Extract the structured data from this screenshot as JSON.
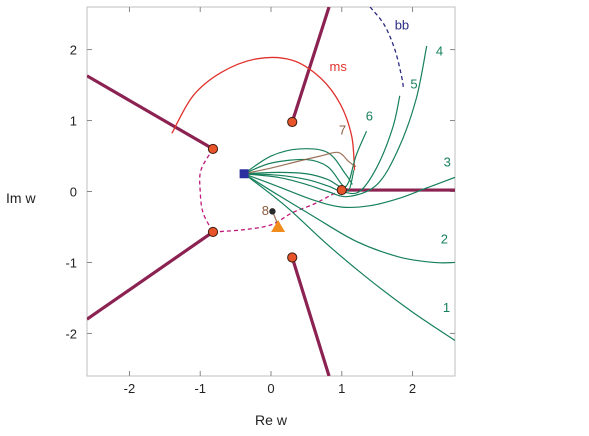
{
  "chart_data": {
    "type": "line",
    "title": "",
    "xlabel": "Re w",
    "ylabel": "Im w",
    "xlim": [
      -2.6,
      2.6
    ],
    "ylim": [
      -2.6,
      2.6
    ],
    "x_ticks": [
      -2,
      -1,
      0,
      1,
      2
    ],
    "y_ticks": [
      -2,
      -1,
      0,
      1,
      2
    ],
    "x_tick_labels": [
      "-2",
      "-1",
      "0",
      "1",
      "2"
    ],
    "y_tick_labels": [
      "-2",
      "-1",
      "0",
      "1",
      "2"
    ],
    "grid": false,
    "colors": {
      "cut": "#8b2252",
      "ms": "#e0322d",
      "bb": "#2a2a80",
      "flow": "#17805a",
      "flow_brown": "#8a5a3c",
      "dashed_pink": "#c0197a",
      "point_fill": "#e8542a",
      "square": "#2a2fa0",
      "triangle": "#f08c1c"
    },
    "points": {
      "circles": [
        [
          -0.82,
          0.6
        ],
        [
          0.3,
          0.98
        ],
        [
          1.0,
          0.02
        ],
        [
          0.3,
          -0.93
        ],
        [
          -0.82,
          -0.57
        ]
      ],
      "square": [
        -0.38,
        0.25
      ],
      "triangle": [
        0.1,
        -0.5
      ],
      "dot": [
        0.02,
        -0.28
      ]
    },
    "cuts": [
      {
        "name": "",
        "x": [
          -0.82,
          -2.6
        ],
        "y": [
          0.6,
          1.63
        ]
      },
      {
        "name": "",
        "x": [
          0.3,
          0.82
        ],
        "y": [
          0.98,
          2.6
        ]
      },
      {
        "name": "",
        "x": [
          1.0,
          2.6
        ],
        "y": [
          0.02,
          0.02
        ]
      },
      {
        "name": "",
        "x": [
          0.3,
          0.82
        ],
        "y": [
          -0.93,
          -2.6
        ]
      },
      {
        "name": "",
        "x": [
          -0.82,
          -2.6
        ],
        "y": [
          -0.57,
          -1.8
        ]
      }
    ],
    "series": [
      {
        "name": "ms",
        "style": "solid",
        "x": [
          -1.4,
          -1.1,
          -0.7,
          -0.2,
          0.3,
          0.7,
          0.98,
          1.14,
          1.18
        ],
        "y": [
          0.82,
          1.35,
          1.68,
          1.87,
          1.85,
          1.6,
          1.23,
          0.78,
          0.3
        ]
      },
      {
        "name": "bb",
        "style": "dashed",
        "x": [
          1.4,
          1.6,
          1.75,
          1.85,
          1.87
        ],
        "y": [
          2.6,
          2.35,
          2.0,
          1.6,
          1.45
        ]
      },
      {
        "name": "",
        "style": "dashed-pink",
        "x": [
          -0.82,
          -0.99,
          -1.0,
          -0.96,
          -0.82
        ],
        "y": [
          0.6,
          0.3,
          0.0,
          -0.3,
          -0.57
        ]
      },
      {
        "name": "",
        "style": "dashed-pink",
        "x": [
          -0.82,
          -0.4,
          0.0,
          0.3,
          0.6,
          0.85,
          1.0
        ],
        "y": [
          -0.57,
          -0.54,
          -0.47,
          -0.3,
          -0.18,
          -0.05,
          0.02
        ]
      },
      {
        "name": "1",
        "style": "flow",
        "x": [
          -0.38,
          0.2,
          0.8,
          1.4,
          2.0,
          2.6
        ],
        "y": [
          0.25,
          -0.2,
          -0.75,
          -1.25,
          -1.7,
          -2.1
        ]
      },
      {
        "name": "2",
        "style": "flow",
        "x": [
          -0.38,
          0.1,
          0.6,
          1.2,
          1.8,
          2.3,
          2.6
        ],
        "y": [
          0.25,
          -0.05,
          -0.35,
          -0.7,
          -0.92,
          -1.0,
          -1.0
        ]
      },
      {
        "name": "3",
        "style": "flow",
        "x": [
          -0.38,
          0.1,
          0.6,
          1.0,
          1.4,
          1.8,
          2.2,
          2.6
        ],
        "y": [
          0.25,
          0.07,
          -0.12,
          -0.22,
          -0.2,
          -0.1,
          0.05,
          0.2
        ]
      },
      {
        "name": "4",
        "style": "flow",
        "x": [
          -0.38,
          0.1,
          0.5,
          0.8,
          1.1,
          1.5,
          1.8,
          2.05,
          2.2
        ],
        "y": [
          0.25,
          0.2,
          0.1,
          0.0,
          -0.07,
          0.1,
          0.6,
          1.3,
          2.05
        ]
      },
      {
        "name": "5",
        "style": "flow",
        "x": [
          -0.38,
          0.1,
          0.5,
          0.8,
          1.0,
          1.25,
          1.5,
          1.72,
          1.82
        ],
        "y": [
          0.25,
          0.23,
          0.17,
          0.08,
          0.0,
          0.0,
          0.35,
          0.9,
          1.35
        ]
      },
      {
        "name": "6",
        "style": "flow",
        "x": [
          -0.38,
          0.1,
          0.5,
          0.8,
          1.0,
          1.1,
          1.2,
          1.35
        ],
        "y": [
          0.25,
          0.27,
          0.25,
          0.17,
          0.06,
          0.14,
          0.5,
          0.85
        ]
      },
      {
        "name": "",
        "style": "flow",
        "x": [
          -0.38,
          0.0,
          0.5,
          0.8,
          1.0,
          1.1,
          1.17
        ],
        "y": [
          0.25,
          0.4,
          0.45,
          0.35,
          0.1,
          0.02,
          0.3
        ]
      },
      {
        "name": "",
        "style": "flow",
        "x": [
          -0.38,
          0.0,
          0.4,
          0.8,
          1.05,
          1.15
        ],
        "y": [
          0.25,
          0.5,
          0.6,
          0.55,
          0.25,
          0.1
        ]
      },
      {
        "name": "7",
        "style": "flow-brown",
        "x": [
          -0.38,
          0.0,
          0.4,
          0.7,
          0.95,
          1.1,
          1.2
        ],
        "y": [
          0.25,
          0.33,
          0.43,
          0.5,
          0.55,
          0.42,
          0.35
        ]
      },
      {
        "name": "8",
        "style": "flow-brown",
        "x": [
          0.02,
          0.07,
          0.1
        ],
        "y": [
          -0.28,
          -0.4,
          -0.5
        ]
      }
    ],
    "labels": [
      {
        "text": "ms",
        "x": 0.95,
        "y": 1.7,
        "color": "#e0322d"
      },
      {
        "text": "bb",
        "x": 1.85,
        "y": 2.28,
        "color": "#2a2a80"
      },
      {
        "text": "4",
        "x": 2.38,
        "y": 1.92,
        "color": "#17805a"
      },
      {
        "text": "5",
        "x": 2.02,
        "y": 1.45,
        "color": "#17805a"
      },
      {
        "text": "6",
        "x": 1.39,
        "y": 1.0,
        "color": "#17805a"
      },
      {
        "text": "7",
        "x": 1.01,
        "y": 0.8,
        "color": "#8a5a3c"
      },
      {
        "text": "3",
        "x": 2.49,
        "y": 0.35,
        "color": "#17805a"
      },
      {
        "text": "8",
        "x": -0.08,
        "y": -0.33,
        "color": "#8a5a3c"
      },
      {
        "text": "2",
        "x": 2.45,
        "y": -0.73,
        "color": "#17805a"
      },
      {
        "text": "1",
        "x": 2.48,
        "y": -1.7,
        "color": "#17805a"
      }
    ]
  }
}
